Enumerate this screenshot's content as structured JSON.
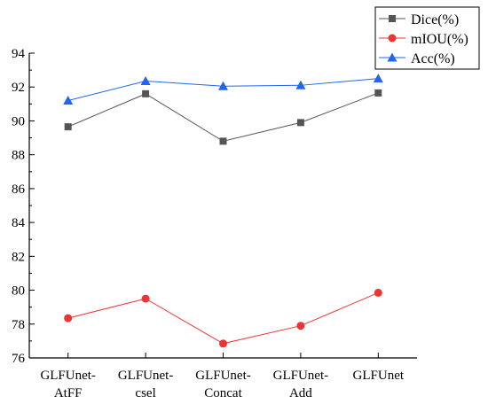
{
  "chart_data": {
    "type": "line",
    "categories": [
      [
        "GLFUnet-",
        "AtFF"
      ],
      [
        "GLFUnet-",
        "csel"
      ],
      [
        "GLFUnet-",
        "Concat"
      ],
      [
        "GLFUnet-",
        "Add"
      ],
      [
        "GLFUnet"
      ]
    ],
    "series": [
      {
        "name": "Dice(%)",
        "values": [
          89.65,
          91.6,
          88.8,
          89.9,
          91.65
        ],
        "color": "#555555",
        "marker": "square"
      },
      {
        "name": "mIOU(%)",
        "values": [
          78.35,
          79.5,
          76.85,
          77.9,
          79.85
        ],
        "color": "#ee3333",
        "marker": "circle"
      },
      {
        "name": "Acc(%)",
        "values": [
          91.2,
          92.35,
          92.05,
          92.1,
          92.5
        ],
        "color": "#2266ee",
        "marker": "triangle"
      }
    ],
    "ylim": [
      76,
      94
    ],
    "yticks": [
      76,
      78,
      80,
      82,
      84,
      86,
      88,
      90,
      92,
      94
    ],
    "title": "",
    "xlabel": "",
    "ylabel": "",
    "grid": false,
    "legend": "top-right"
  }
}
